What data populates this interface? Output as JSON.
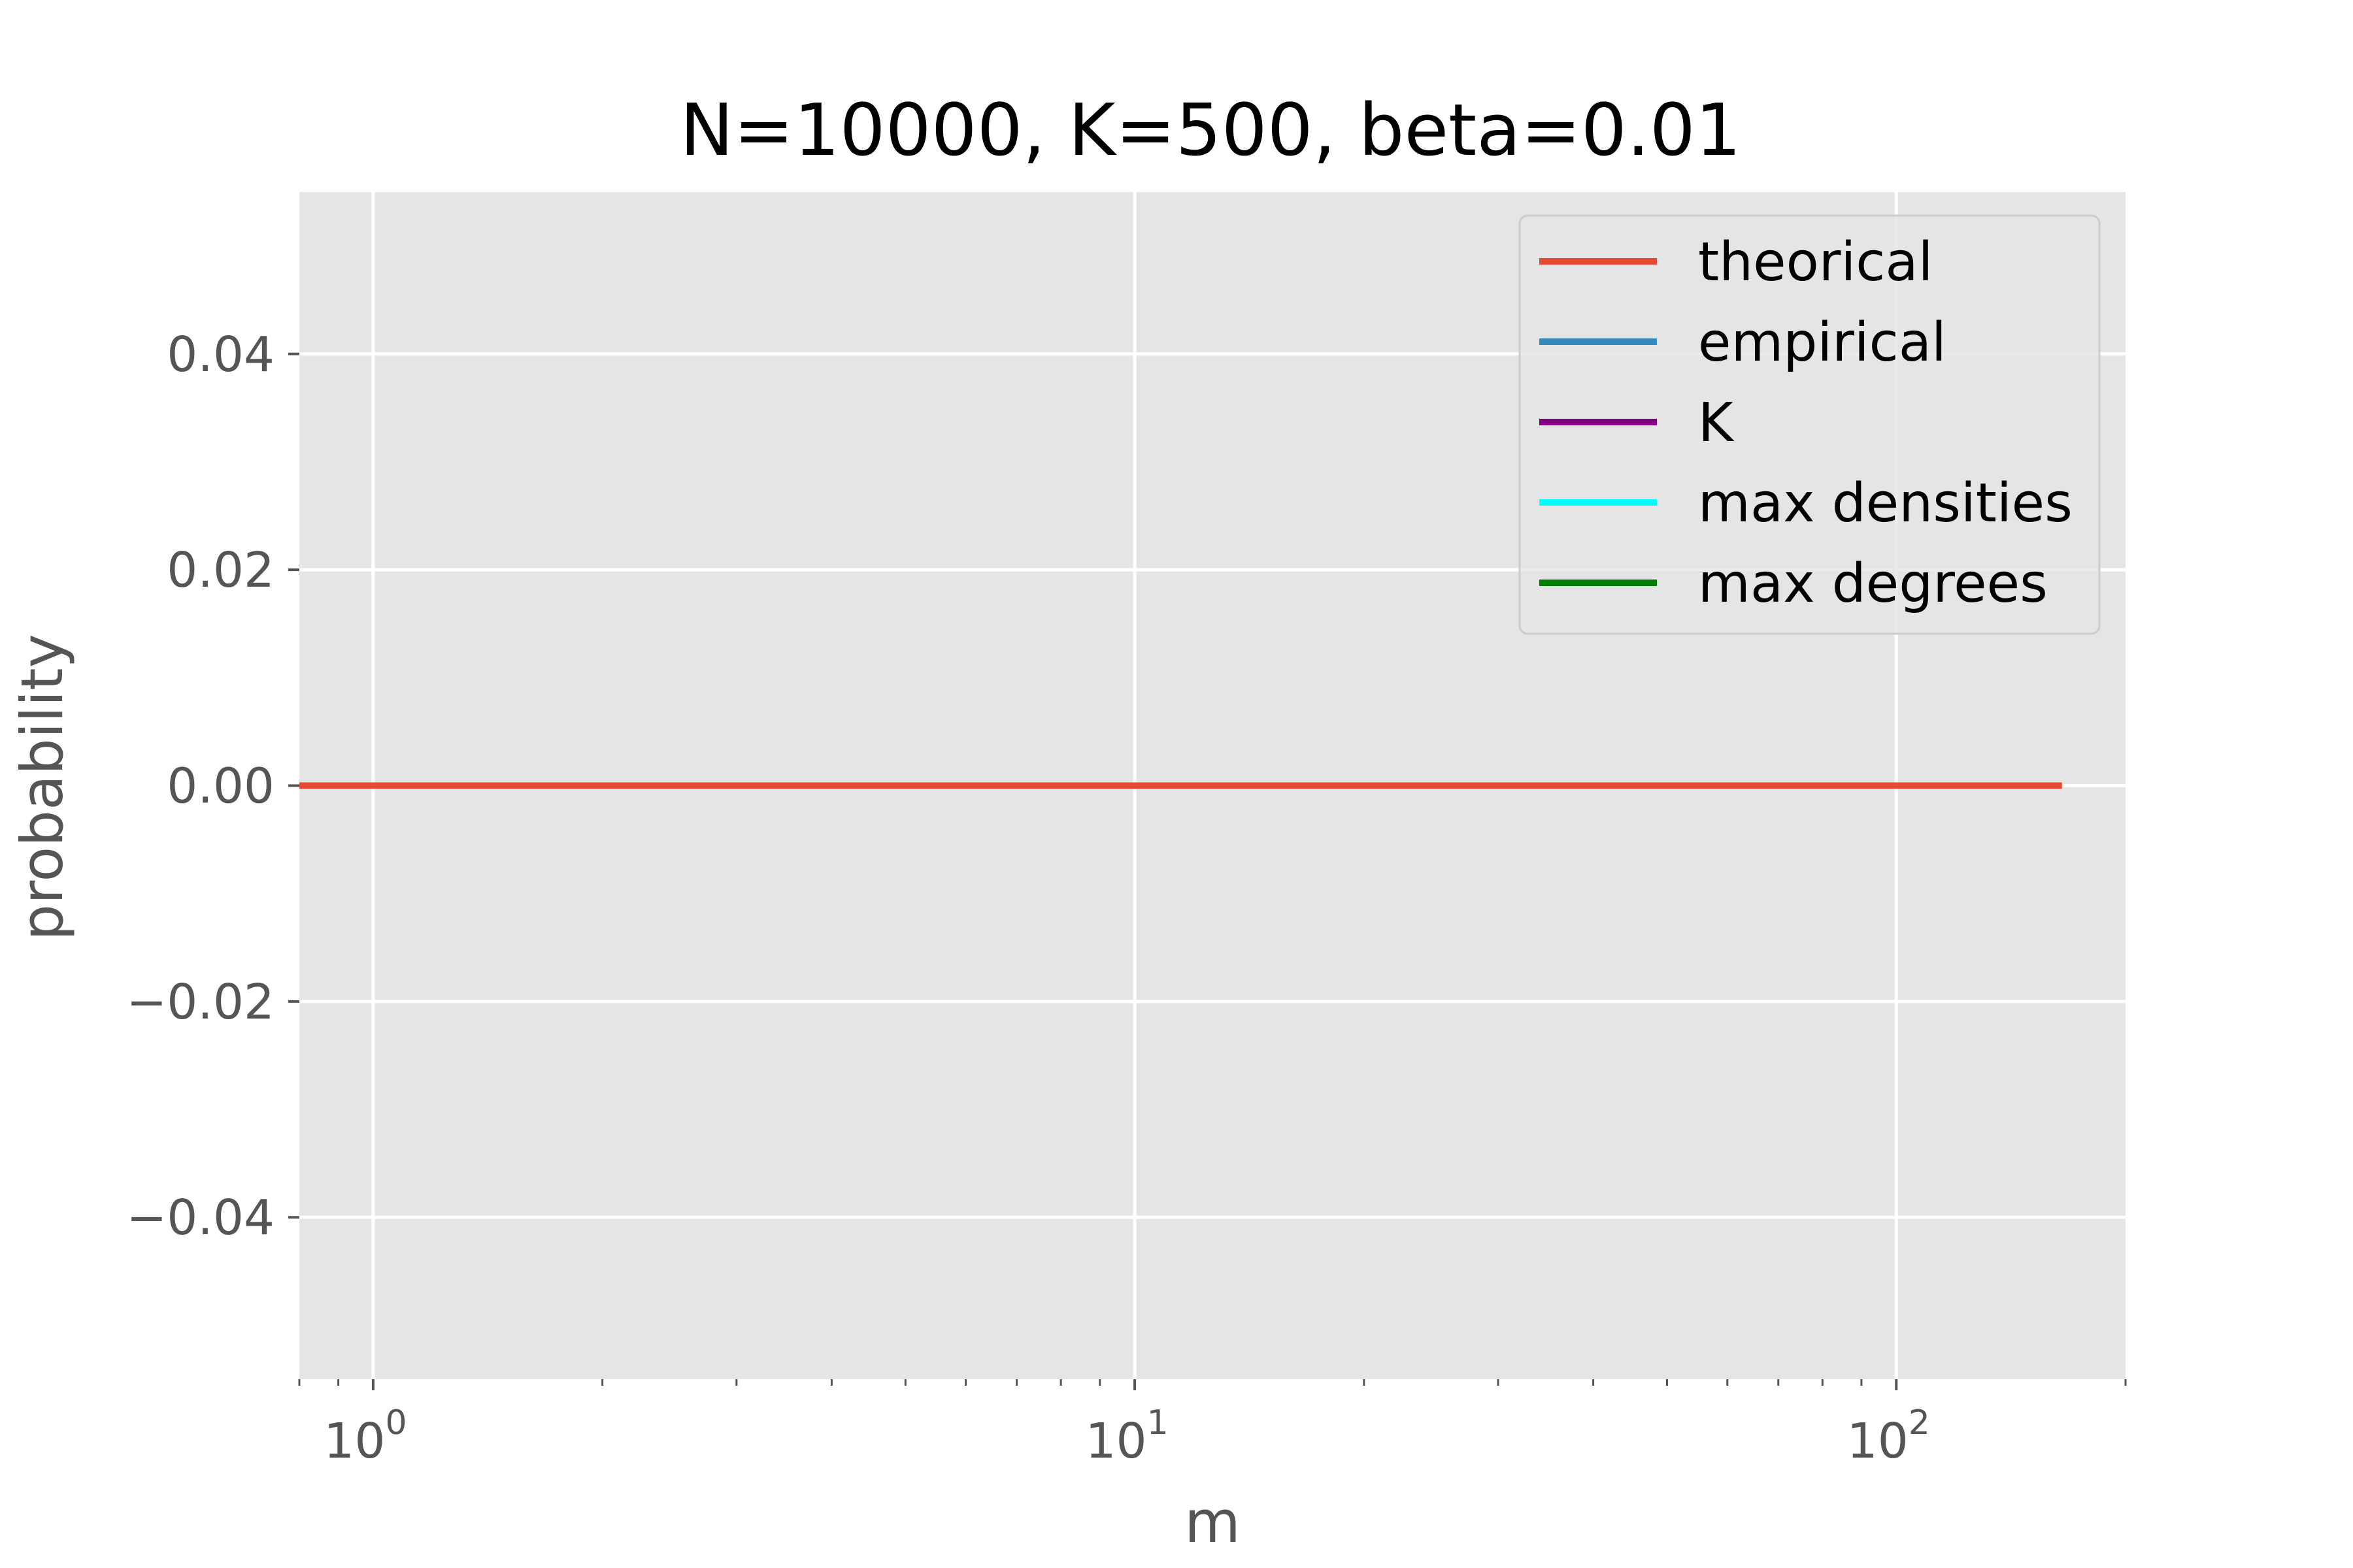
{
  "chart_data": {
    "type": "line",
    "title": "N=10000, K=500, beta=0.01",
    "xlabel": "m",
    "ylabel": "probability",
    "xscale": "log",
    "xlim": [
      0.8,
      200
    ],
    "ylim": [
      -0.055,
      0.055
    ],
    "grid": true,
    "background": "#e5e5e5",
    "legend": {
      "placement": "top-right",
      "entries": [
        {
          "label": "theorical",
          "color": "#e24a33"
        },
        {
          "label": "empirical",
          "color": "#348abd"
        },
        {
          "label": "K",
          "color": "#800080"
        },
        {
          "label": "max densities",
          "color": "#00ffff"
        },
        {
          "label": "max degrees",
          "color": "#008000"
        }
      ]
    },
    "x_major_ticks": [
      {
        "value": 1,
        "base": "10",
        "exp": "0"
      },
      {
        "value": 10,
        "base": "10",
        "exp": "1"
      },
      {
        "value": 100,
        "base": "10",
        "exp": "2"
      }
    ],
    "y_ticks": [
      {
        "value": 0.04,
        "label": "0.04"
      },
      {
        "value": 0.02,
        "label": "0.02"
      },
      {
        "value": 0.0,
        "label": "0.00"
      },
      {
        "value": -0.02,
        "label": "−0.02"
      },
      {
        "value": -0.04,
        "label": "−0.04"
      }
    ],
    "series": [
      {
        "name": "theorical",
        "color": "#e24a33",
        "x": [
          0.8,
          165
        ],
        "y": [
          0.0,
          0.0
        ]
      }
    ]
  }
}
